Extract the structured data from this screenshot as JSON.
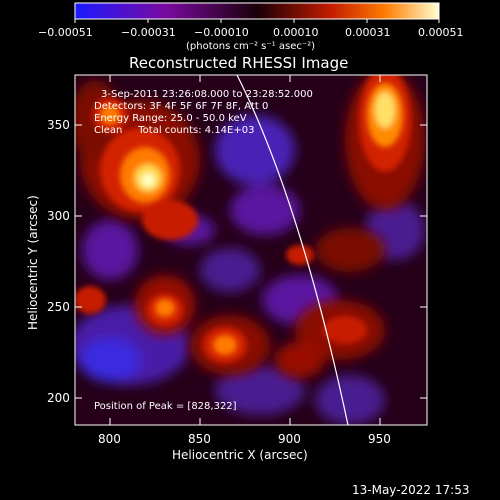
{
  "colorbar": {
    "tick_labels": [
      "−0.00051",
      "−0.00031",
      "−0.00010",
      "0.00010",
      "0.00031",
      "0.00051"
    ],
    "units": "(photons cm⁻² s⁻¹ asec⁻²)",
    "colors": [
      "#1a1aff",
      "#7a0aa0",
      "#1a0008",
      "#c11a00",
      "#ff7a00",
      "#ffffd0"
    ]
  },
  "image": {
    "title": "Reconstructed RHESSI Image",
    "info_lines": [
      "3-Sep-2011 23:26:08.000 to 23:28:52.000",
      "Detectors: 3F 4F 5F 6F 7F 8F, Att 0",
      "Energy Range: 25.0 - 50.0 keV",
      "Clean     Total counts: 4.14E+03"
    ],
    "peak_label": "Position of Peak = [828,322]"
  },
  "axes": {
    "xlabel": "Heliocentric X (arcsec)",
    "ylabel": "Heliocentric Y (arcsec)",
    "xticks": [
      800,
      850,
      900,
      950
    ],
    "yticks": [
      200,
      250,
      300,
      350
    ],
    "xlim": [
      782,
      974
    ],
    "ylim": [
      186,
      378
    ]
  },
  "footer": {
    "timestamp": "13-May-2022 17:53"
  }
}
